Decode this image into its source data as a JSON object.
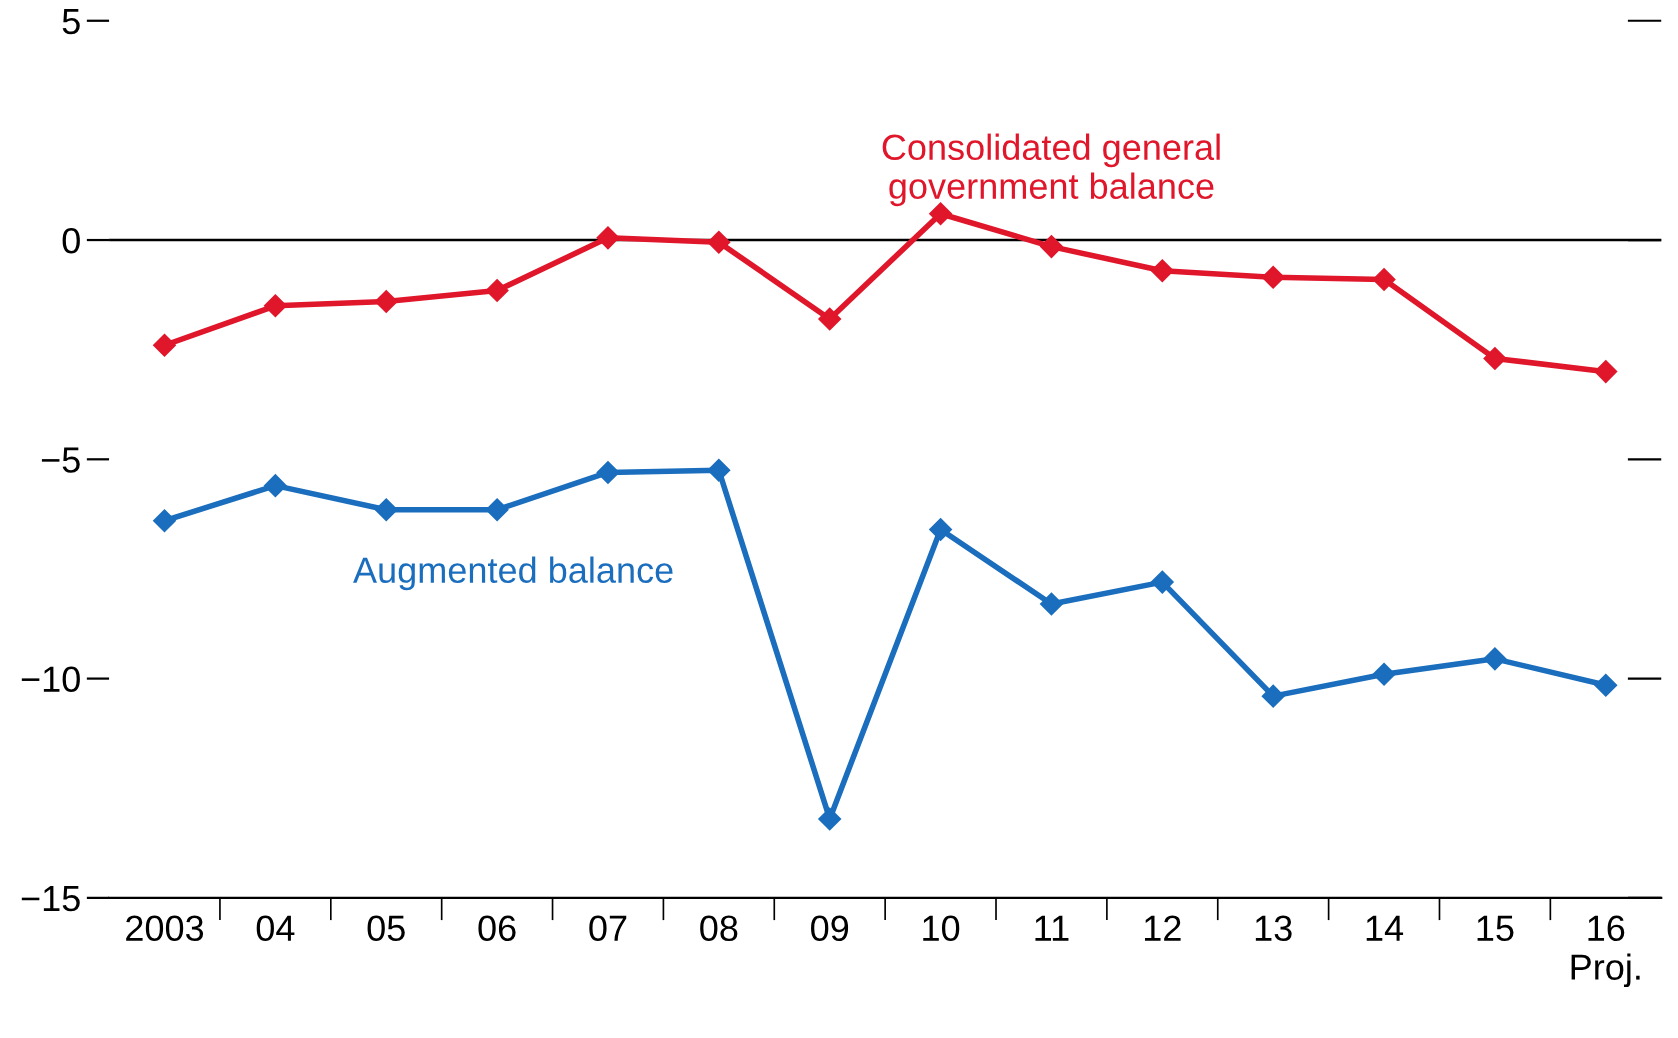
{
  "chart_data": {
    "type": "line",
    "categories": [
      "2003",
      "04",
      "05",
      "06",
      "07",
      "08",
      "09",
      "10",
      "11",
      "12",
      "13",
      "14",
      "15",
      "16\nProj."
    ],
    "series": [
      {
        "name": "Consolidated general\ngovernment balance",
        "color": "#e0162b",
        "values": [
          -2.4,
          -1.5,
          -1.4,
          -1.15,
          0.05,
          -0.05,
          -1.8,
          0.6,
          -0.15,
          -0.7,
          -0.85,
          -0.9,
          -2.7,
          -3.0
        ]
      },
      {
        "name": "Augmented balance",
        "color": "#1a6ebd",
        "values": [
          -6.4,
          -5.6,
          -6.15,
          -6.15,
          -5.3,
          -5.25,
          -13.2,
          -6.6,
          -8.3,
          -7.8,
          -10.4,
          -9.9,
          -9.55,
          -10.15
        ]
      }
    ],
    "ylim": [
      -15,
      5
    ],
    "yticks": [
      {
        "value": -15,
        "label": "−15"
      },
      {
        "value": -10,
        "label": "−10"
      },
      {
        "value": -5,
        "label": "−5"
      },
      0,
      5
    ],
    "ref_lines": [
      {
        "axis": "y",
        "value": 0,
        "color": "#000000"
      }
    ],
    "marker": "diamond",
    "line_style": "solid",
    "grid": false,
    "legend": false
  }
}
